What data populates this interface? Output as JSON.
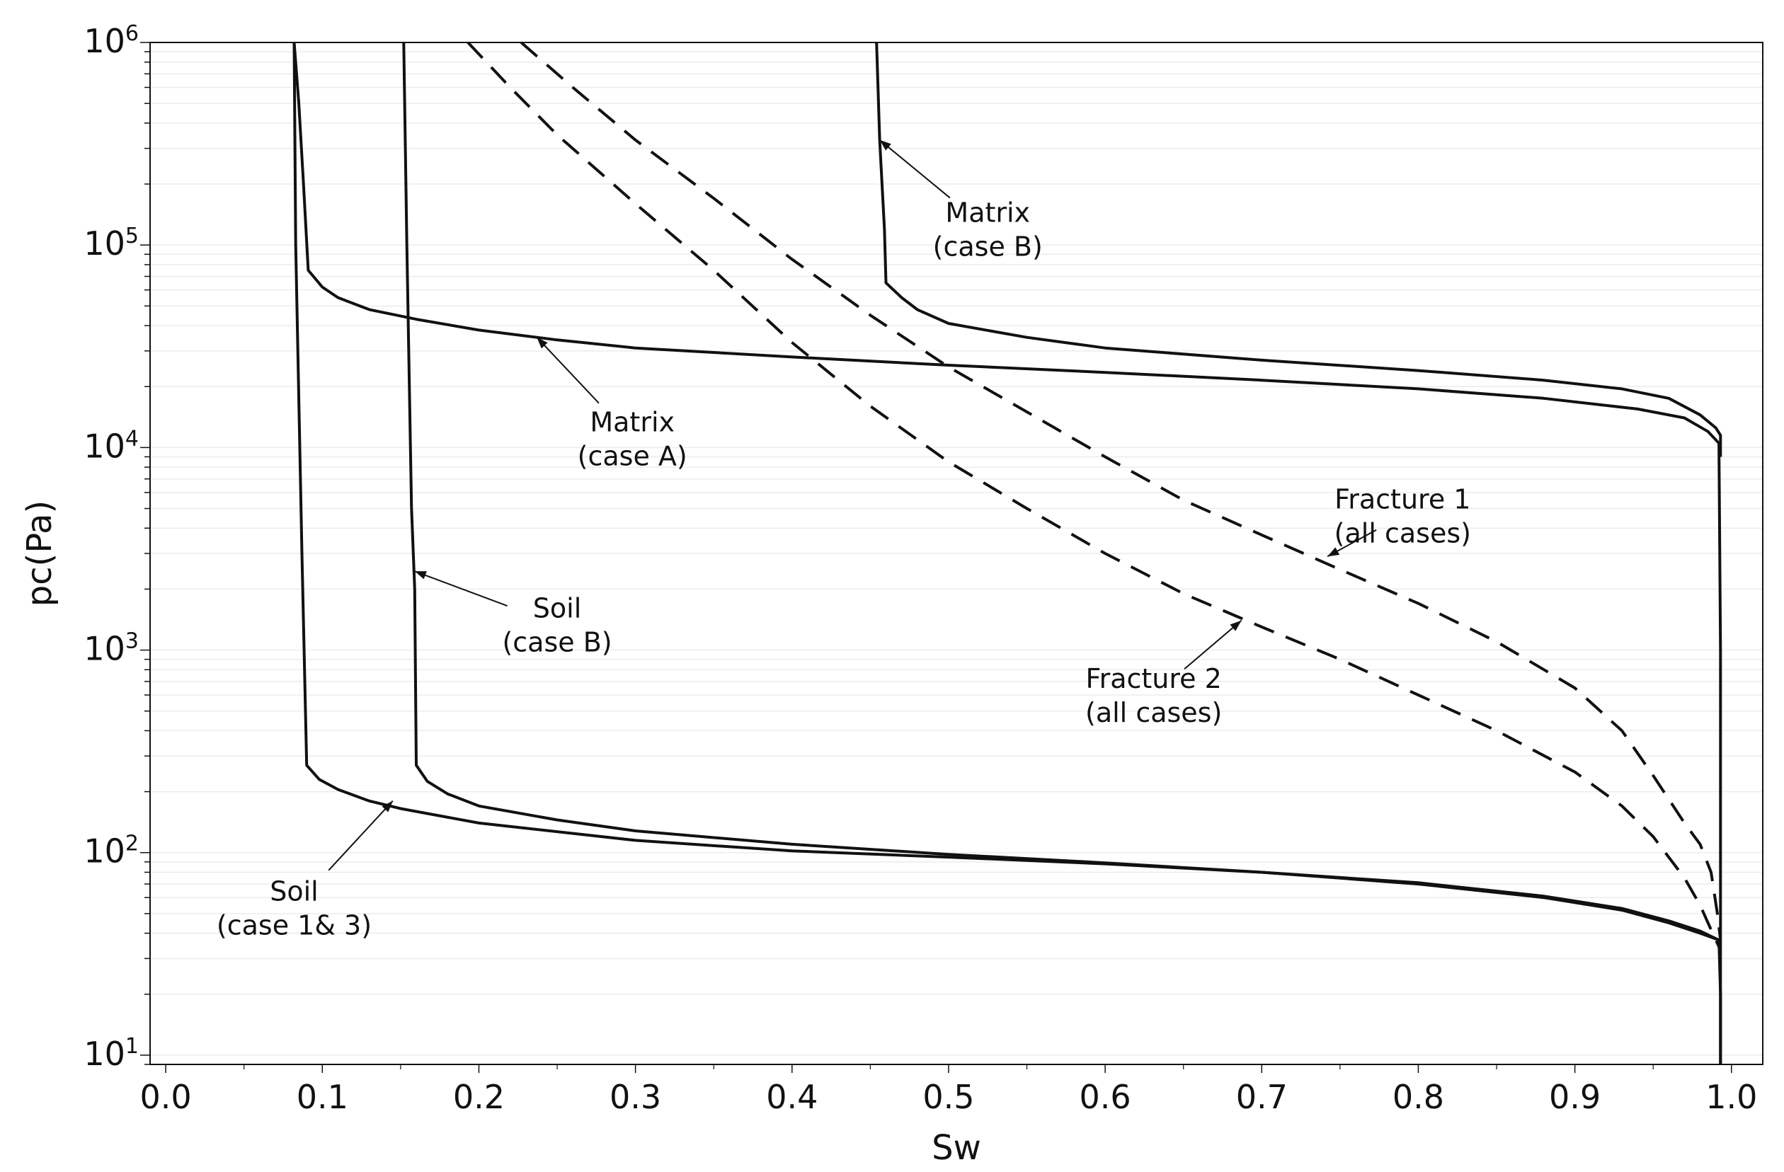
{
  "chart_data": {
    "type": "line",
    "title": "",
    "xlabel": "Sw",
    "ylabel": "pc(Pa)",
    "xlim": [
      -0.01,
      1.02
    ],
    "ylim": [
      9,
      1000000
    ],
    "yscale": "log",
    "grid": "y-minor-light",
    "x_ticks": [
      {
        "value": 0.0,
        "label": "0.0"
      },
      {
        "value": 0.1,
        "label": "0.1"
      },
      {
        "value": 0.2,
        "label": "0.2"
      },
      {
        "value": 0.3,
        "label": "0.3"
      },
      {
        "value": 0.4,
        "label": "0.4"
      },
      {
        "value": 0.5,
        "label": "0.5"
      },
      {
        "value": 0.6,
        "label": "0.6"
      },
      {
        "value": 0.7,
        "label": "0.7"
      },
      {
        "value": 0.8,
        "label": "0.8"
      },
      {
        "value": 0.9,
        "label": "0.9"
      },
      {
        "value": 1.0,
        "label": "1.0"
      }
    ],
    "y_ticks": [
      {
        "value": 1000000,
        "base": "10",
        "exp": "6"
      },
      {
        "value": 100000,
        "base": "10",
        "exp": "5"
      },
      {
        "value": 10000,
        "base": "10",
        "exp": "4"
      },
      {
        "value": 1000,
        "base": "10",
        "exp": "3"
      },
      {
        "value": 100,
        "base": "10",
        "exp": "2"
      },
      {
        "value": 10,
        "base": "10",
        "exp": "1"
      }
    ],
    "series": [
      {
        "name": "Soil (case 1& 3)",
        "style": "solid",
        "points": [
          [
            0.082,
            1000000
          ],
          [
            0.083,
            100000
          ],
          [
            0.087,
            3000
          ],
          [
            0.09,
            270
          ],
          [
            0.098,
            230
          ],
          [
            0.11,
            205
          ],
          [
            0.13,
            180
          ],
          [
            0.15,
            165
          ],
          [
            0.2,
            140
          ],
          [
            0.3,
            115
          ],
          [
            0.4,
            102
          ],
          [
            0.5,
            95
          ],
          [
            0.6,
            88
          ],
          [
            0.7,
            80
          ],
          [
            0.8,
            70
          ],
          [
            0.88,
            60
          ],
          [
            0.93,
            52
          ],
          [
            0.96,
            45
          ],
          [
            0.98,
            40
          ],
          [
            0.992,
            37
          ],
          [
            0.993,
            20
          ],
          [
            0.993,
            9
          ]
        ]
      },
      {
        "name": "Soil (case B)",
        "style": "solid",
        "points": [
          [
            0.152,
            1000000
          ],
          [
            0.154,
            100000
          ],
          [
            0.157,
            5000
          ],
          [
            0.159,
            2000
          ],
          [
            0.16,
            270
          ],
          [
            0.167,
            225
          ],
          [
            0.18,
            195
          ],
          [
            0.2,
            170
          ],
          [
            0.25,
            145
          ],
          [
            0.3,
            128
          ],
          [
            0.4,
            110
          ],
          [
            0.5,
            98
          ],
          [
            0.6,
            89
          ],
          [
            0.7,
            80
          ],
          [
            0.8,
            71
          ],
          [
            0.88,
            61
          ],
          [
            0.93,
            53
          ],
          [
            0.96,
            46
          ],
          [
            0.98,
            41
          ],
          [
            0.992,
            37
          ]
        ]
      },
      {
        "name": "Matrix (case A)",
        "style": "solid",
        "points": [
          [
            0.082,
            1000000
          ],
          [
            0.085,
            500000
          ],
          [
            0.088,
            200000
          ],
          [
            0.091,
            75000
          ],
          [
            0.1,
            62000
          ],
          [
            0.11,
            55000
          ],
          [
            0.13,
            48000
          ],
          [
            0.16,
            43000
          ],
          [
            0.2,
            38000
          ],
          [
            0.25,
            34000
          ],
          [
            0.3,
            31000
          ],
          [
            0.4,
            28000
          ],
          [
            0.5,
            25500
          ],
          [
            0.6,
            23500
          ],
          [
            0.7,
            21500
          ],
          [
            0.8,
            19500
          ],
          [
            0.88,
            17500
          ],
          [
            0.94,
            15500
          ],
          [
            0.97,
            14000
          ],
          [
            0.985,
            12000
          ],
          [
            0.992,
            10500
          ],
          [
            0.993,
            1000
          ],
          [
            0.993,
            9
          ]
        ]
      },
      {
        "name": "Matrix (case B)",
        "style": "solid",
        "points": [
          [
            0.454,
            1000000
          ],
          [
            0.456,
            330000
          ],
          [
            0.459,
            120000
          ],
          [
            0.46,
            65000
          ],
          [
            0.47,
            55000
          ],
          [
            0.48,
            48000
          ],
          [
            0.5,
            41000
          ],
          [
            0.55,
            35000
          ],
          [
            0.6,
            31000
          ],
          [
            0.7,
            27000
          ],
          [
            0.8,
            24000
          ],
          [
            0.88,
            21500
          ],
          [
            0.93,
            19500
          ],
          [
            0.96,
            17500
          ],
          [
            0.98,
            14500
          ],
          [
            0.99,
            12500
          ],
          [
            0.993,
            11500
          ],
          [
            0.993,
            9000
          ]
        ]
      },
      {
        "name": "Fracture 1 (all cases)",
        "style": "dashed",
        "points": [
          [
            0.227,
            1000000
          ],
          [
            0.26,
            600000
          ],
          [
            0.3,
            330000
          ],
          [
            0.35,
            170000
          ],
          [
            0.4,
            85000
          ],
          [
            0.45,
            45000
          ],
          [
            0.5,
            25000
          ],
          [
            0.55,
            15000
          ],
          [
            0.6,
            9000
          ],
          [
            0.65,
            5500
          ],
          [
            0.7,
            3700
          ],
          [
            0.75,
            2500
          ],
          [
            0.8,
            1700
          ],
          [
            0.85,
            1100
          ],
          [
            0.9,
            650
          ],
          [
            0.93,
            400
          ],
          [
            0.95,
            240
          ],
          [
            0.97,
            140
          ],
          [
            0.98,
            110
          ],
          [
            0.987,
            80
          ],
          [
            0.991,
            50
          ],
          [
            0.993,
            37
          ]
        ]
      },
      {
        "name": "Fracture 2 (all cases)",
        "style": "dashed",
        "points": [
          [
            0.193,
            1000000
          ],
          [
            0.22,
            600000
          ],
          [
            0.25,
            350000
          ],
          [
            0.3,
            160000
          ],
          [
            0.35,
            75000
          ],
          [
            0.4,
            33000
          ],
          [
            0.45,
            16000
          ],
          [
            0.5,
            8500
          ],
          [
            0.55,
            5000
          ],
          [
            0.6,
            3000
          ],
          [
            0.65,
            1900
          ],
          [
            0.7,
            1300
          ],
          [
            0.75,
            900
          ],
          [
            0.8,
            600
          ],
          [
            0.85,
            400
          ],
          [
            0.9,
            250
          ],
          [
            0.93,
            170
          ],
          [
            0.95,
            120
          ],
          [
            0.97,
            75
          ],
          [
            0.98,
            55
          ],
          [
            0.988,
            40
          ],
          [
            0.993,
            33
          ]
        ]
      }
    ],
    "annotations": [
      {
        "line1": "Matrix",
        "line2": "(case B)",
        "text_at": [
          0.525,
          130000
        ],
        "arrow_to": [
          0.456,
          330000
        ]
      },
      {
        "line1": "Matrix",
        "line2": "(case A)",
        "text_at": [
          0.298,
          12000
        ],
        "arrow_to": [
          0.237,
          35000
        ]
      },
      {
        "line1": "Fracture 1",
        "line2": "(all cases)",
        "text_at": [
          0.79,
          5000
        ],
        "arrow_to": [
          0.742,
          2900
        ]
      },
      {
        "line1": "Soil",
        "line2": "(case B)",
        "text_at": [
          0.25,
          1450
        ],
        "arrow_to": [
          0.159,
          2450
        ]
      },
      {
        "line1": "Fracture 2",
        "line2": "(all cases)",
        "text_at": [
          0.631,
          650
        ],
        "arrow_to": [
          0.687,
          1400
        ]
      },
      {
        "line1": "Soil",
        "line2": "(case 1& 3)",
        "text_at": [
          0.082,
          58
        ],
        "arrow_to": [
          0.145,
          180
        ]
      }
    ]
  }
}
